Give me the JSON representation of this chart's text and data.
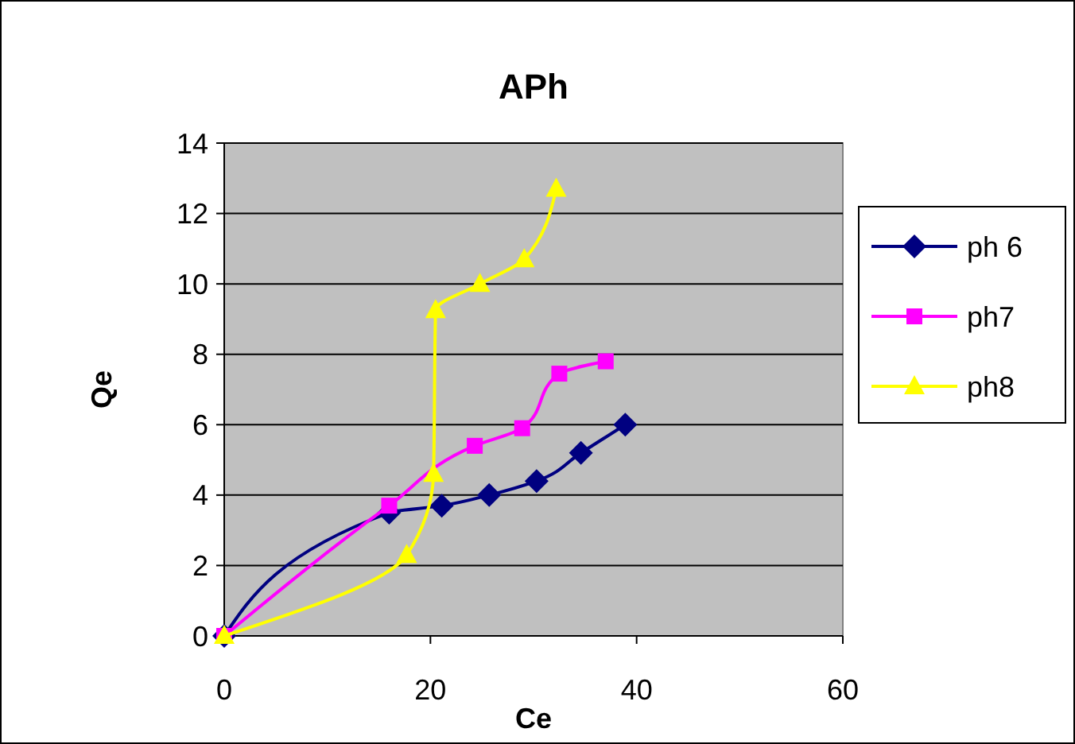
{
  "chart_data": {
    "type": "line",
    "title": "APh",
    "xlabel": "Ce",
    "ylabel": "Qe",
    "xlim": [
      0,
      60
    ],
    "xticks": [
      0,
      20,
      40,
      60
    ],
    "ylim": [
      0,
      14
    ],
    "yticks": [
      0,
      2,
      4,
      6,
      8,
      10,
      12,
      14
    ],
    "grid": "y",
    "legend": "right",
    "series": [
      {
        "name": "ph 6",
        "color": "#000080",
        "marker": "diamond",
        "x": [
          0,
          16,
          21.1,
          25.7,
          30.3,
          34.6,
          38.9
        ],
        "values": [
          0,
          3.5,
          3.7,
          4.0,
          4.4,
          5.2,
          6.0
        ]
      },
      {
        "name": "ph7",
        "color": "#ff00ff",
        "marker": "square",
        "x": [
          0,
          16,
          24.3,
          28.9,
          32.5,
          37
        ],
        "values": [
          0,
          3.7,
          5.4,
          5.9,
          7.45,
          7.8
        ]
      },
      {
        "name": "ph8",
        "color": "#ffff00",
        "marker": "triangle",
        "x": [
          0,
          17.7,
          20.3,
          20.5,
          24.8,
          29.1,
          32.2
        ],
        "values": [
          0,
          2.3,
          4.6,
          9.25,
          10.0,
          10.7,
          12.7
        ]
      }
    ]
  }
}
